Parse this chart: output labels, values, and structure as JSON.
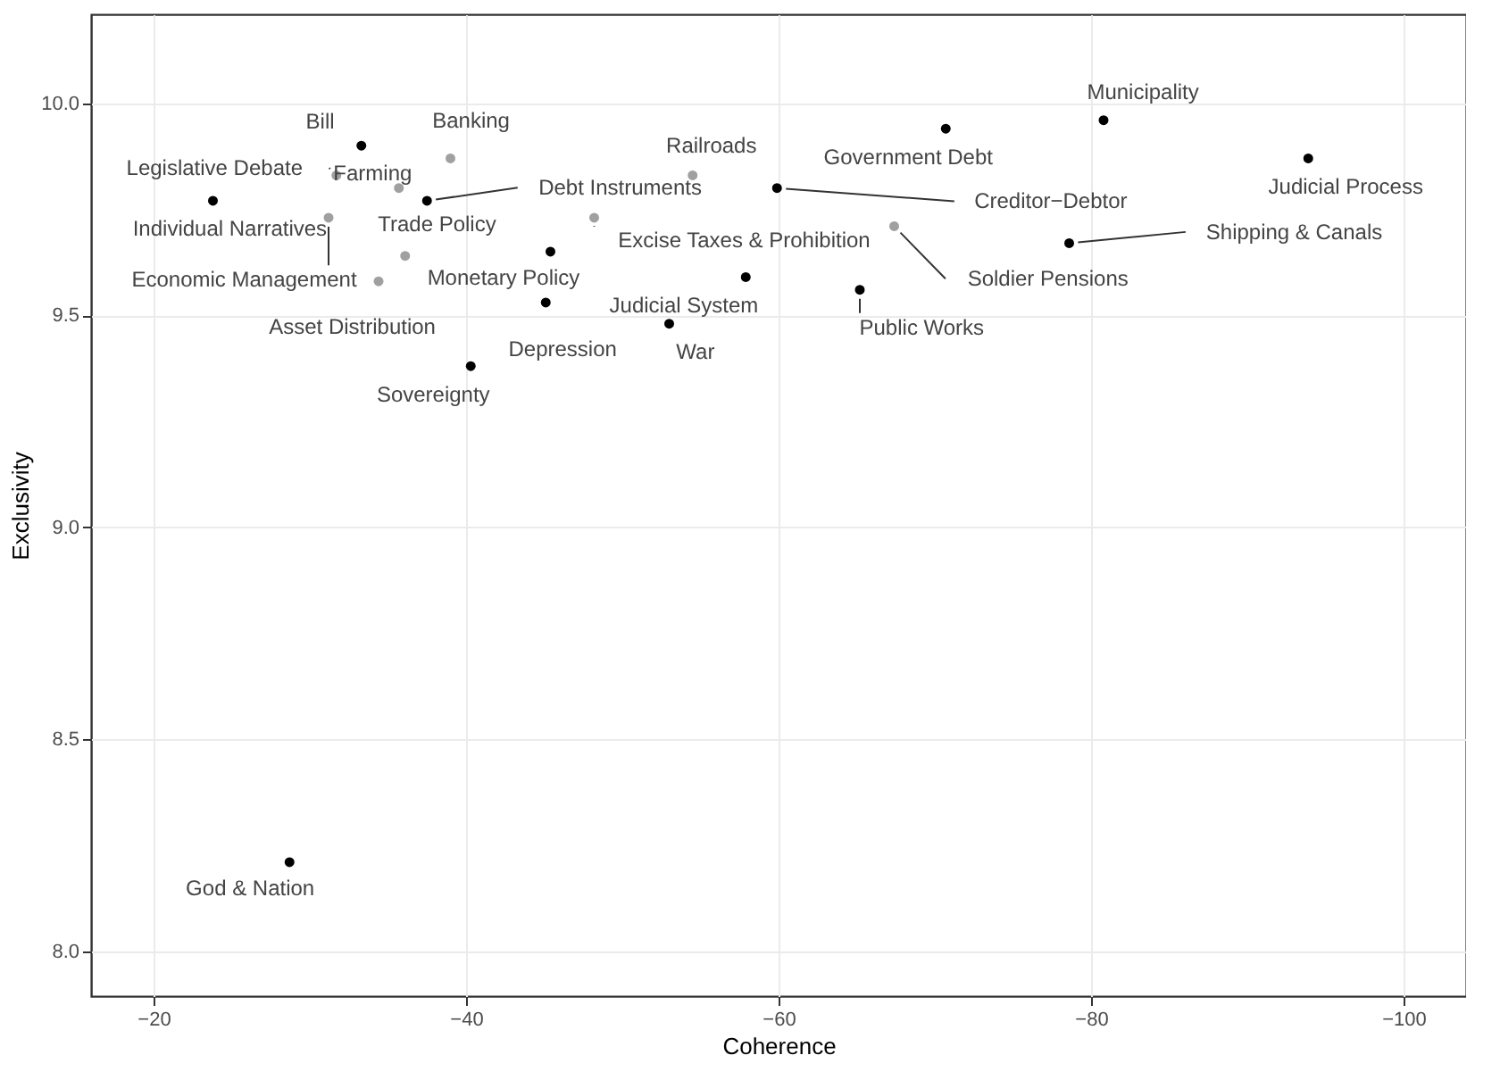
{
  "chart_data": {
    "type": "scatter",
    "xlabel": "Coherence",
    "ylabel": "Exclusivity",
    "x": [
      -33.3,
      -39.0,
      -31.7,
      -35.7,
      -23.8,
      -37.5,
      -36.1,
      -31.2,
      -45.4,
      -34.4,
      -45.1,
      -40.3,
      -54.5,
      -48.2,
      -57.9,
      -53.0,
      -59.9,
      -70.7,
      -80.8,
      -93.9,
      -67.4,
      -78.6,
      -65.2,
      -28.7
    ],
    "values": [
      9.9,
      9.87,
      9.83,
      9.8,
      9.77,
      9.77,
      9.64,
      9.73,
      9.65,
      9.58,
      9.53,
      9.38,
      9.83,
      9.73,
      9.59,
      9.48,
      9.8,
      9.94,
      9.96,
      9.87,
      9.71,
      9.67,
      9.56,
      8.21
    ],
    "colors": [
      "#000000",
      "#a0a0a0",
      "#a0a0a0",
      "#a0a0a0",
      "#000000",
      "#000000",
      "#a0a0a0",
      "#a0a0a0",
      "#000000",
      "#a0a0a0",
      "#000000",
      "#000000",
      "#a0a0a0",
      "#a0a0a0",
      "#000000",
      "#000000",
      "#000000",
      "#000000",
      "#000000",
      "#000000",
      "#a0a0a0",
      "#000000",
      "#000000",
      "#000000"
    ],
    "annotations": [
      {
        "text": "Bill",
        "x": -33.3,
        "y": 9.9
      },
      {
        "text": "Banking",
        "x": -39.0,
        "y": 9.87
      },
      {
        "text": "Legislative Debate",
        "x": -31.7,
        "y": 9.83
      },
      {
        "text": "Farming",
        "x": -35.7,
        "y": 9.8
      },
      {
        "text": "Individual Narratives",
        "x": -23.8,
        "y": 9.77
      },
      {
        "text": "Debt Instruments",
        "x": -37.5,
        "y": 9.77
      },
      {
        "text": "Trade Policy",
        "x": -36.1,
        "y": 9.64
      },
      {
        "text": "Economic Management",
        "x": -31.2,
        "y": 9.73
      },
      {
        "text": "Monetary Policy",
        "x": -45.4,
        "y": 9.65
      },
      {
        "text": "Asset Distribution",
        "x": -34.4,
        "y": 9.58
      },
      {
        "text": "Depression",
        "x": -45.1,
        "y": 9.53
      },
      {
        "text": "Sovereignty",
        "x": -40.3,
        "y": 9.38
      },
      {
        "text": "Railroads",
        "x": -54.5,
        "y": 9.83
      },
      {
        "text": "Excise Taxes & Prohibition",
        "x": -48.2,
        "y": 9.73
      },
      {
        "text": "Judicial System",
        "x": -57.9,
        "y": 9.59
      },
      {
        "text": "War",
        "x": -53.0,
        "y": 9.48
      },
      {
        "text": "Creditor−Debtor",
        "x": -59.9,
        "y": 9.8
      },
      {
        "text": "Government Debt",
        "x": -70.7,
        "y": 9.94
      },
      {
        "text": "Municipality",
        "x": -80.8,
        "y": 9.96
      },
      {
        "text": "Judicial Process",
        "x": -93.9,
        "y": 9.87
      },
      {
        "text": "Soldier Pensions",
        "x": -67.4,
        "y": 9.71
      },
      {
        "text": "Shipping & Canals",
        "x": -78.6,
        "y": 9.67
      },
      {
        "text": "Public Works",
        "x": -65.2,
        "y": 9.56
      },
      {
        "text": "God & Nation",
        "x": -28.7,
        "y": 8.21
      }
    ],
    "xlim": [
      -16,
      -104
    ],
    "xticks": [
      {
        "value": -20,
        "label": "−20"
      },
      {
        "value": -40,
        "label": "−40"
      },
      {
        "value": -60,
        "label": "−60"
      },
      {
        "value": -80,
        "label": "−80"
      },
      {
        "value": -100,
        "label": "−100"
      }
    ],
    "ylim": [
      7.894,
      10.21
    ],
    "yticks": [
      {
        "value": 8,
        "label": "8.0"
      },
      {
        "value": 8.5,
        "label": "8.5"
      },
      {
        "value": 9,
        "label": "9.0"
      },
      {
        "value": 9.5,
        "label": "9.5"
      },
      {
        "value": 10,
        "label": "10.0"
      }
    ],
    "grid": true,
    "marker": "circle"
  }
}
